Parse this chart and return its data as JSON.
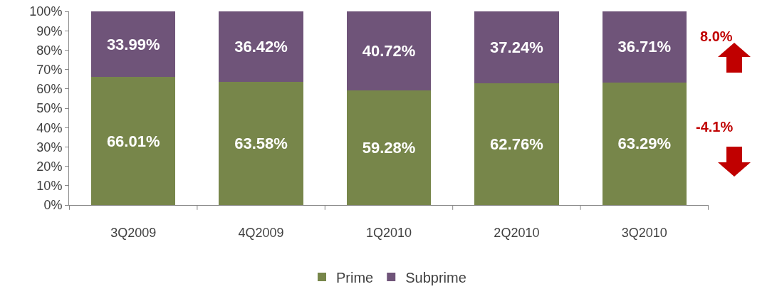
{
  "chart_data": {
    "type": "bar",
    "stacked": true,
    "categories": [
      "3Q2009",
      "4Q2009",
      "1Q2010",
      "2Q2010",
      "3Q2010"
    ],
    "series": [
      {
        "name": "Prime",
        "color": "#77864a",
        "values": [
          66.01,
          63.58,
          59.28,
          62.76,
          63.29
        ],
        "value_labels": [
          "66.01%",
          "63.58%",
          "59.28%",
          "62.76%",
          "63.29%"
        ]
      },
      {
        "name": "Subprime",
        "color": "#6f5479",
        "values": [
          33.99,
          36.42,
          40.72,
          37.24,
          36.71
        ],
        "value_labels": [
          "33.99%",
          "36.42%",
          "40.72%",
          "37.24%",
          "36.71%"
        ]
      }
    ],
    "ylim": [
      0,
      100
    ],
    "yticks": [
      {
        "value": 0,
        "label": "0%"
      },
      {
        "value": 10,
        "label": "10%"
      },
      {
        "value": 20,
        "label": "20%"
      },
      {
        "value": 30,
        "label": "30%"
      },
      {
        "value": 40,
        "label": "40%"
      },
      {
        "value": 50,
        "label": "50%"
      },
      {
        "value": 60,
        "label": "60%"
      },
      {
        "value": 70,
        "label": "70%"
      },
      {
        "value": 80,
        "label": "80%"
      },
      {
        "value": 90,
        "label": "90%"
      },
      {
        "value": 100,
        "label": "100%"
      }
    ],
    "annotations": [
      "8.0%",
      "-4.1%"
    ],
    "grid": false,
    "legend": "bottom"
  }
}
